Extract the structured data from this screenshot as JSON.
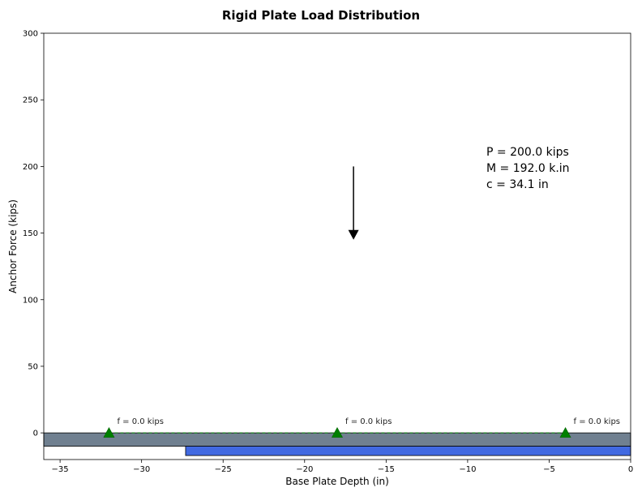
{
  "chart_data": {
    "type": "line",
    "title": "Rigid Plate Load Distribution",
    "xlabel": "Base Plate Depth (in)",
    "ylabel": "Anchor Force (kips)",
    "xlim": [
      -36,
      0
    ],
    "ylim": [
      -20,
      300
    ],
    "xticks": [
      -35,
      -30,
      -25,
      -20,
      -15,
      -10,
      -5,
      0
    ],
    "xtick_labels": [
      "−35",
      "−30",
      "−25",
      "−20",
      "−15",
      "−10",
      "−5",
      "0"
    ],
    "yticks": [
      0,
      50,
      100,
      150,
      200,
      250,
      300
    ],
    "ytick_labels": [
      "0",
      "50",
      "100",
      "150",
      "200",
      "250",
      "300"
    ],
    "grid": false,
    "plate": {
      "x": [
        -36,
        0
      ],
      "y": [
        -10,
        0
      ],
      "color": "#708090"
    },
    "bearing_zone": {
      "x": [
        -27.3,
        0
      ],
      "y": [
        -17,
        -10
      ],
      "color": "#4169E1"
    },
    "anchors": [
      {
        "x": -32,
        "force": 0.0,
        "label": "f = 0.0 kips"
      },
      {
        "x": -18,
        "force": 0.0,
        "label": "f = 0.0 kips"
      },
      {
        "x": -4,
        "force": 0.0,
        "label": "f = 0.0 kips"
      }
    ],
    "anchor_color": "#008000",
    "load_arrow": {
      "x": -17,
      "y_start": 200,
      "y_end": 145
    },
    "annotations": [
      "P = 200.0 kips",
      "M = 192.0 k.in",
      "c = 34.1 in"
    ]
  }
}
